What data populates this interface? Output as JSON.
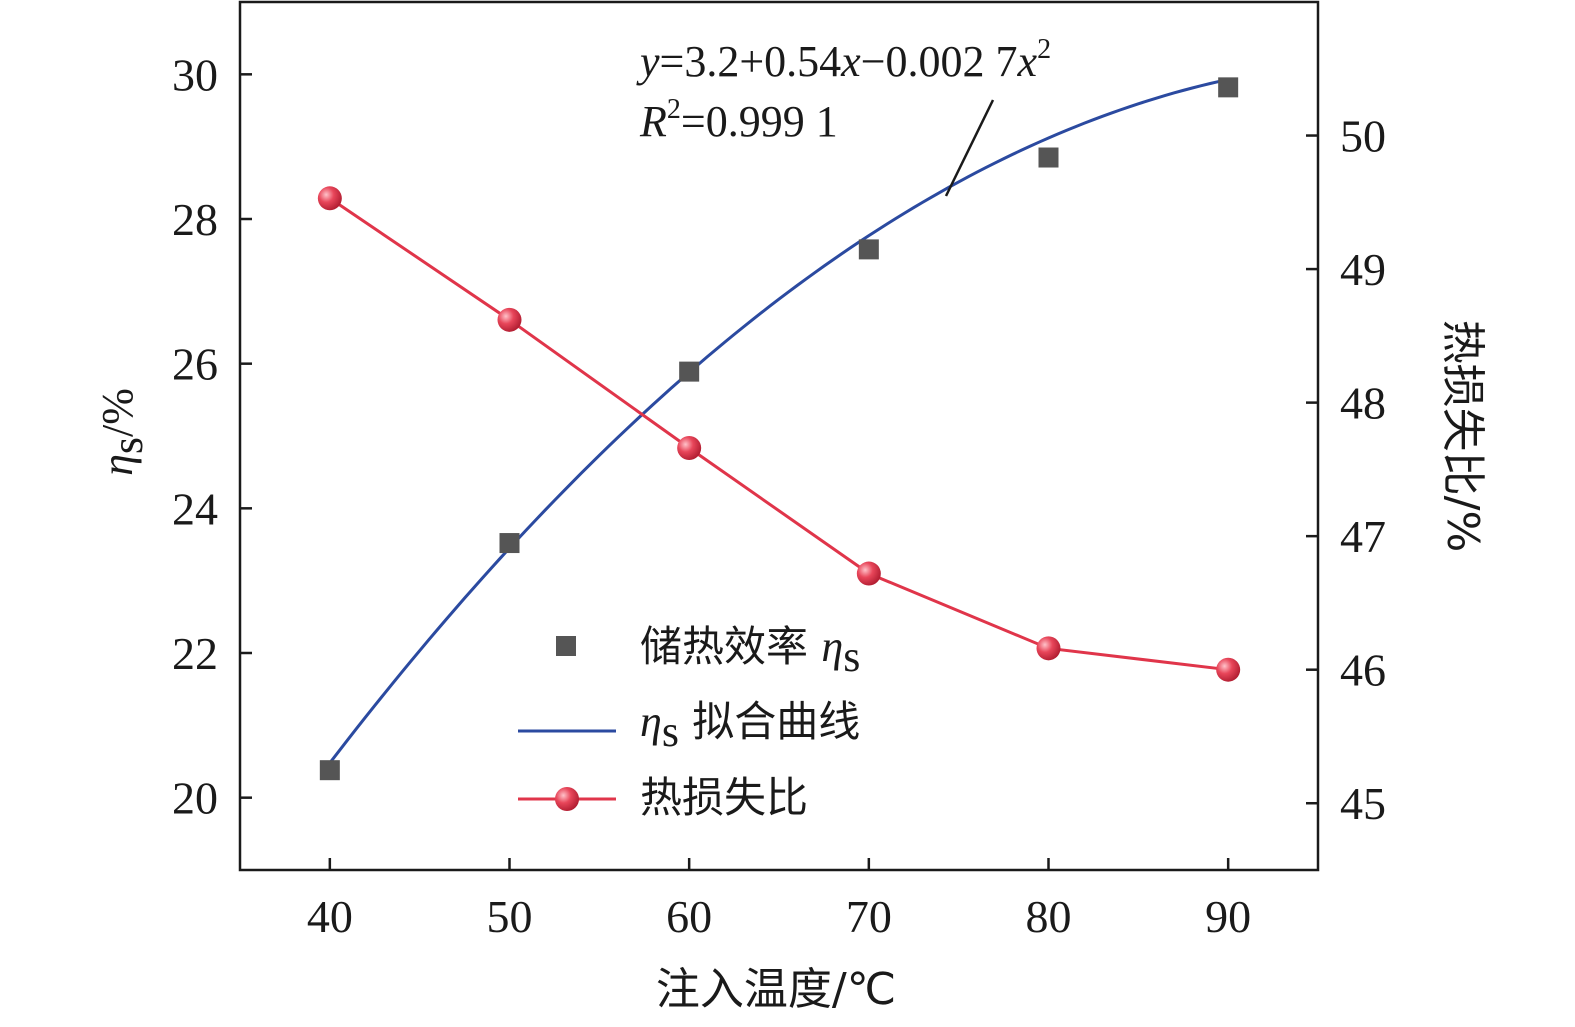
{
  "chart_data": {
    "type": "line",
    "title": "",
    "xlabel": "注入温度/℃",
    "ylabel_left": {
      "symbol": "η",
      "subscript": "s",
      "unit": "/%"
    },
    "ylabel_right": "热损失比/%",
    "xlim": [
      35,
      95
    ],
    "ylim_left": [
      19,
      31
    ],
    "ylim_right": [
      44.5,
      51
    ],
    "x_ticks": [
      40,
      50,
      60,
      70,
      80,
      90
    ],
    "y_left_ticks": [
      20,
      22,
      24,
      26,
      28,
      30
    ],
    "y_right_ticks": [
      45,
      46,
      47,
      48,
      49,
      50
    ],
    "x": [
      40,
      50,
      60,
      70,
      80,
      90
    ],
    "series": [
      {
        "name": "储热效率 ηs",
        "axis": "left",
        "marker": "square",
        "color": "#555555",
        "values": [
          20.38,
          23.52,
          25.89,
          27.58,
          28.85,
          29.82
        ]
      },
      {
        "name": "ηs 拟合曲线",
        "axis": "left",
        "kind": "fit-curve",
        "color": "#2b4aa0",
        "fit": {
          "a": 3.2,
          "b": 0.54,
          "c": -0.0027,
          "x_range": [
            40,
            90
          ]
        }
      },
      {
        "name": "热损失比",
        "axis": "right",
        "marker": "sphere",
        "color": "#e0354a",
        "values": [
          49.53,
          48.62,
          47.66,
          46.72,
          46.16,
          46.0
        ]
      }
    ],
    "legend": {
      "position": "bottom-center",
      "items": [
        {
          "prefix": "",
          "symbol": "",
          "subscript": "",
          "text": "储热效率 ",
          "suffix_symbol": "η",
          "suffix_subscript": "s"
        },
        {
          "prefix": "",
          "symbol": "η",
          "subscript": "s",
          "text": " 拟合曲线",
          "suffix_symbol": "",
          "suffix_subscript": ""
        },
        {
          "prefix": "",
          "symbol": "",
          "subscript": "",
          "text": "热损失比",
          "suffix_symbol": "",
          "suffix_subscript": ""
        }
      ]
    },
    "annotation": {
      "equation": {
        "y": "y",
        "eq": "=3.2+0.54",
        "x1": "x",
        "mid": "−0.002 7",
        "x2": "x",
        "sup": "2"
      },
      "r2": {
        "R": "R",
        "sup": "2",
        "val": "=0.999 1"
      }
    },
    "grid": false
  },
  "colors": {
    "axis": "#1a1a1a",
    "square_fill": "#555555",
    "fit_line": "#2b4aa0",
    "loss_line": "#e0354a",
    "loss_marker_highlight": "#ffb7bf"
  }
}
